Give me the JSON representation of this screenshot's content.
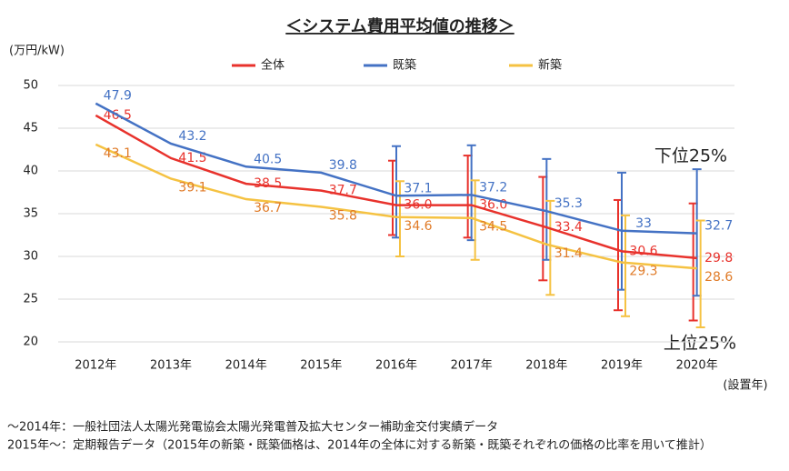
{
  "chart_data": {
    "type": "line",
    "title": "＜システム費用平均値の推移＞",
    "y_unit": "(万円/kW)",
    "x_unit": "(設置年)",
    "categories": [
      "2012年",
      "2013年",
      "2014年",
      "2015年",
      "2016年",
      "2017年",
      "2018年",
      "2019年",
      "2020年"
    ],
    "series": [
      {
        "name": "全体",
        "color": "#e8322c",
        "label_color": "#e8322c",
        "values": [
          46.5,
          41.5,
          38.5,
          37.7,
          36.0,
          36.0,
          33.4,
          30.6,
          29.8
        ],
        "value_labels": [
          "46.5",
          "41.5",
          "38.5",
          "37.7",
          "36.0",
          "36.0",
          "33.4",
          "30.6",
          "29.8"
        ],
        "upper": [
          null,
          null,
          null,
          null,
          41.2,
          41.8,
          39.3,
          36.6,
          36.2
        ],
        "lower": [
          null,
          null,
          null,
          null,
          32.5,
          32.2,
          27.2,
          23.7,
          22.5
        ]
      },
      {
        "name": "既築",
        "color": "#4472c4",
        "label_color": "#4472c4",
        "values": [
          47.9,
          43.2,
          40.5,
          39.8,
          37.1,
          37.2,
          35.3,
          33.0,
          32.7
        ],
        "upper": [
          null,
          null,
          null,
          null,
          42.9,
          43.0,
          41.4,
          39.8,
          40.2
        ],
        "lower": [
          null,
          null,
          null,
          null,
          32.2,
          31.9,
          29.6,
          26.1,
          25.4
        ]
      },
      {
        "name": "新築",
        "color": "#f5c242",
        "label_color": "#e07b28",
        "values": [
          43.1,
          39.1,
          36.7,
          35.8,
          34.6,
          34.5,
          31.4,
          29.3,
          28.6
        ],
        "upper": [
          null,
          null,
          null,
          null,
          38.8,
          38.9,
          36.5,
          34.8,
          34.2
        ],
        "lower": [
          null,
          null,
          null,
          null,
          30.0,
          29.6,
          25.5,
          23.0,
          21.7
        ]
      }
    ],
    "ylim": [
      20,
      50
    ],
    "yticks": [
      20,
      25,
      30,
      35,
      40,
      45,
      50
    ],
    "grid": true,
    "annotations": [
      "下位25%",
      "上位25%"
    ],
    "footnotes": [
      "～2014年：一般社団法人太陽光発電協会太陽光発電普及拡大センター補助金交付実績データ",
      "2015年～：定期報告データ（2015年の新築・既築価格は、2014年の全体に対する新築・既築それぞれの価格の比率を用いて推計）"
    ]
  }
}
